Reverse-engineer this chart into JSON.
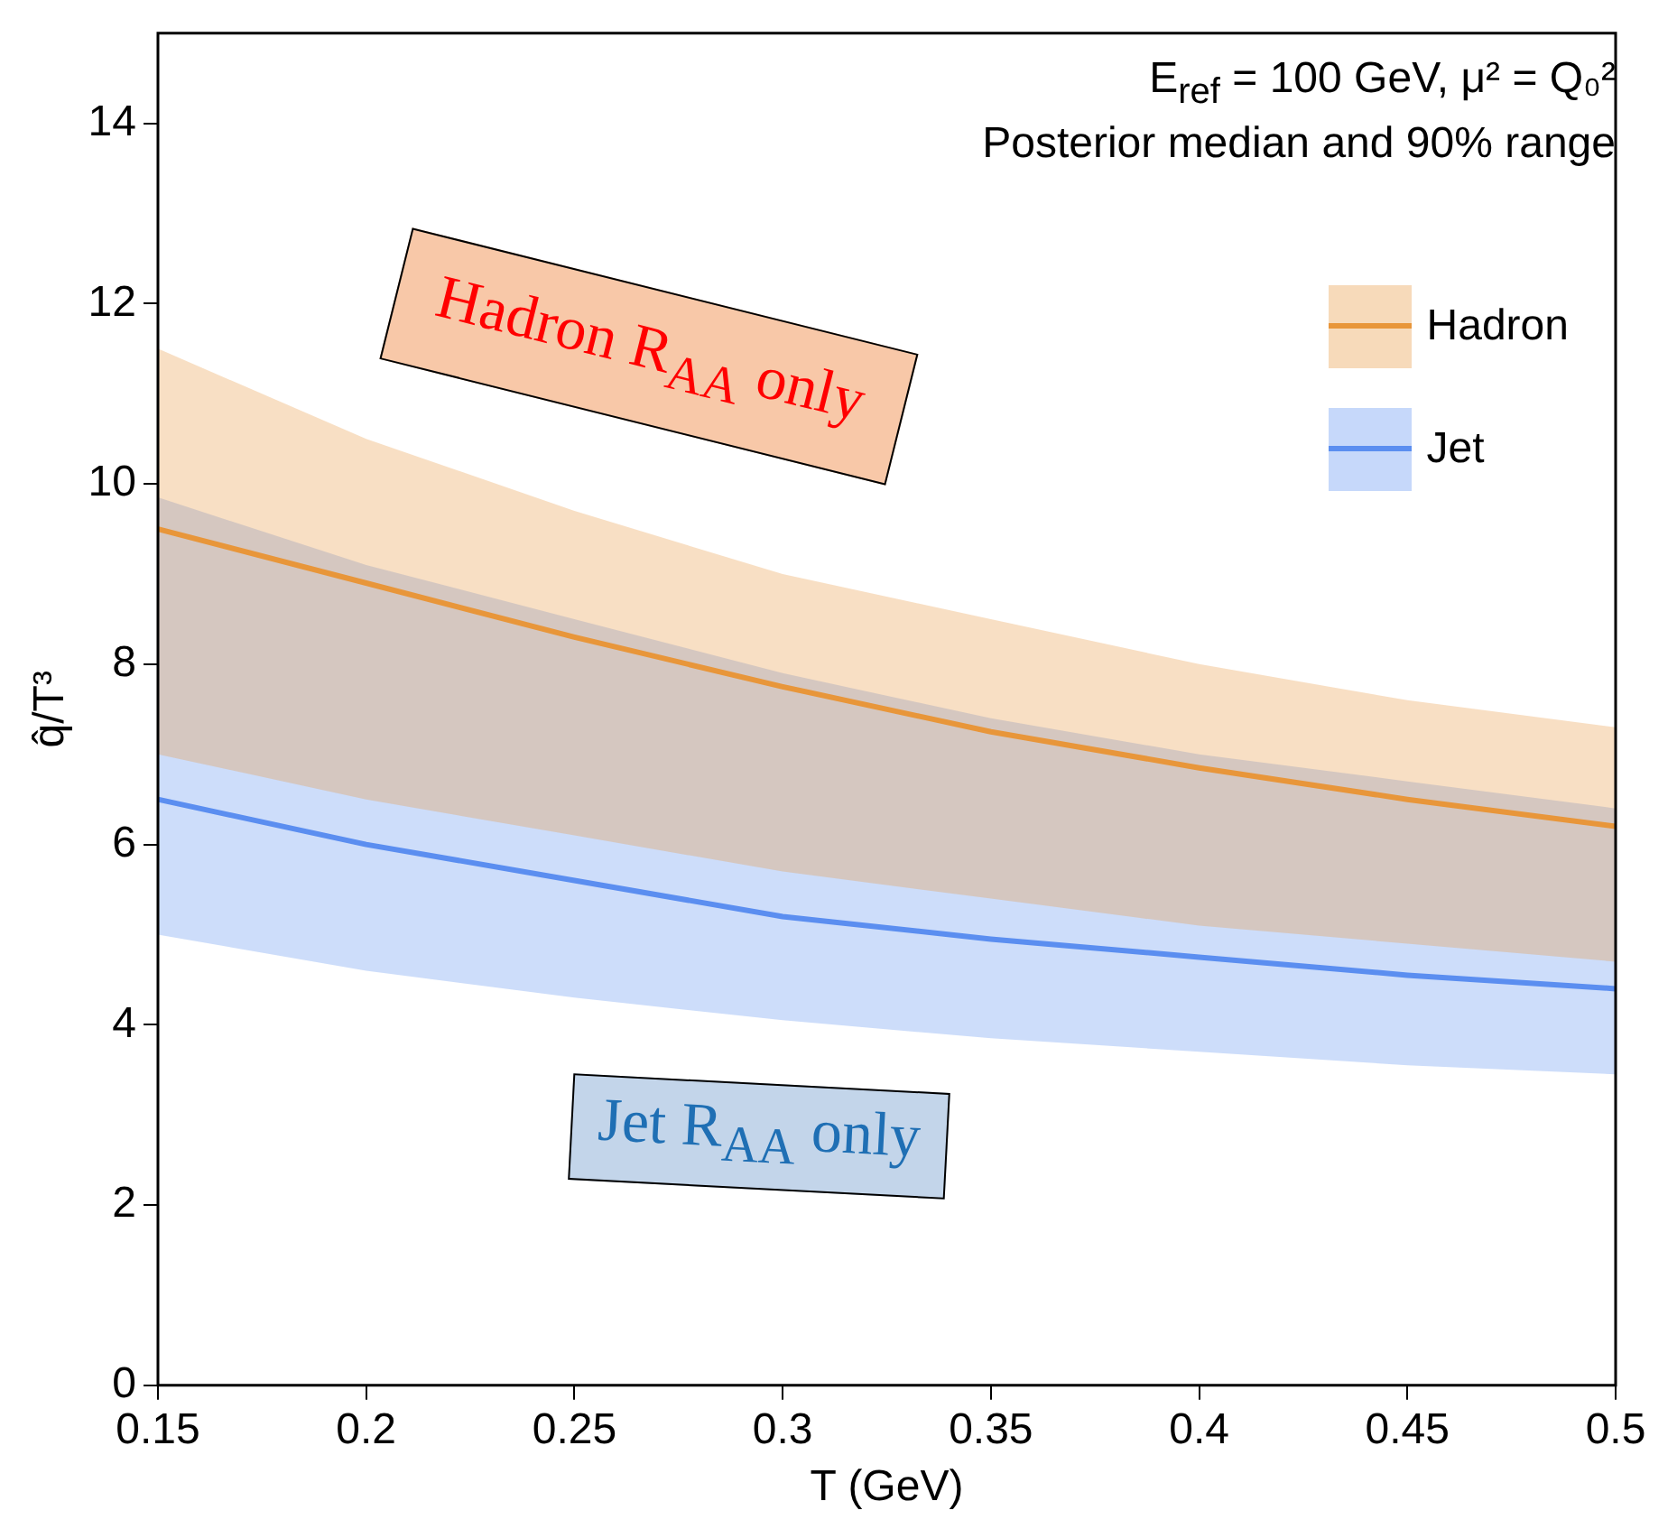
{
  "chart_data": {
    "type": "line",
    "xlabel": "T (GeV)",
    "ylabel": "q̂/T³",
    "x": [
      0.15,
      0.2,
      0.25,
      0.3,
      0.35,
      0.4,
      0.45,
      0.5
    ],
    "series": [
      {
        "name": "Hadron",
        "color": "#e8963a",
        "values": [
          9.5,
          8.9,
          8.3,
          7.75,
          7.25,
          6.85,
          6.5,
          6.2
        ],
        "lower": [
          7.0,
          6.5,
          6.1,
          5.7,
          5.4,
          5.1,
          4.9,
          4.7
        ],
        "upper": [
          11.5,
          10.5,
          9.7,
          9.0,
          8.5,
          8.0,
          7.6,
          7.3
        ]
      },
      {
        "name": "Jet",
        "color": "#5b8ef0",
        "values": [
          6.5,
          6.0,
          5.6,
          5.2,
          4.95,
          4.75,
          4.55,
          4.4
        ],
        "lower": [
          5.0,
          4.6,
          4.3,
          4.05,
          3.85,
          3.7,
          3.55,
          3.45
        ],
        "upper": [
          9.85,
          9.1,
          8.5,
          7.9,
          7.4,
          7.0,
          6.7,
          6.4
        ]
      }
    ],
    "xlim": [
      0.15,
      0.5
    ],
    "xticks": [
      0.15,
      0.2,
      0.25,
      0.3,
      0.35,
      0.4,
      0.45,
      0.5
    ],
    "ylim": [
      0,
      15
    ],
    "yticks": [
      0,
      2,
      4,
      6,
      8,
      10,
      12,
      14
    ],
    "grid": false,
    "legend": "top right",
    "line_style": "solid",
    "marker": "none",
    "annotations": [
      "E$_{ref}$ = 100 GeV,   μ² = Q₀²",
      "Posterior median and 90% range",
      "Hadron R$_{AA}$ only",
      "Jet R$_{AA}$ only"
    ]
  }
}
